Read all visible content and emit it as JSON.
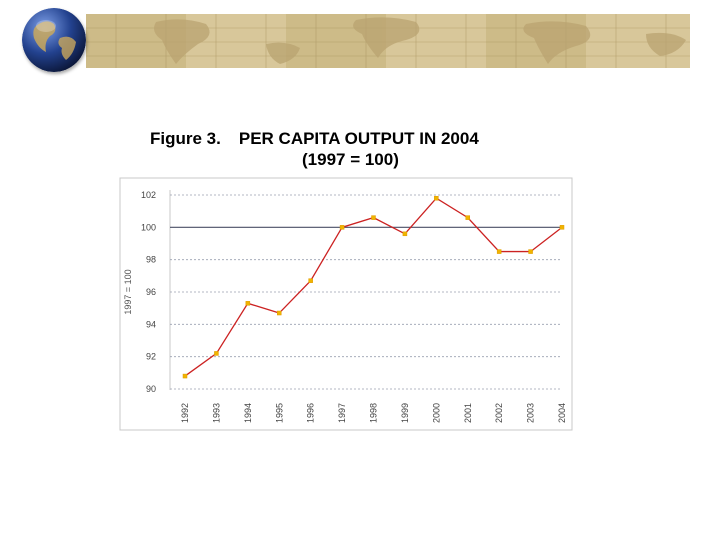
{
  "title": {
    "figure": "Figure 3.",
    "line1": "PER CAPITA OUTPUT IN 2004",
    "line2": "(1997 = 100)"
  },
  "banner": {
    "icon": "world-map-banner",
    "color": "#d8c79a"
  },
  "logo": {
    "icon": "globe-icon"
  },
  "chart_data": {
    "type": "line",
    "title": "PER CAPITA OUTPUT IN 2004 (1997 = 100)",
    "xlabel": "",
    "ylabel": "1997 = 100",
    "categories": [
      "1992",
      "1993",
      "1994",
      "1995",
      "1996",
      "1997",
      "1998",
      "1999",
      "2000",
      "2001",
      "2002",
      "2003",
      "2004"
    ],
    "values": [
      90.8,
      92.2,
      95.3,
      94.7,
      96.7,
      100.0,
      100.6,
      99.6,
      101.8,
      100.6,
      98.5,
      98.5,
      100.0
    ],
    "yticks": [
      90,
      92,
      94,
      96,
      98,
      100,
      102
    ],
    "ylim": [
      90,
      102
    ],
    "grid": true,
    "reference_line": 100,
    "colors": {
      "line": "#cc2222",
      "marker": "#f0b400",
      "grid": "#9aa0b0",
      "frame": "#c8c8c8"
    }
  }
}
